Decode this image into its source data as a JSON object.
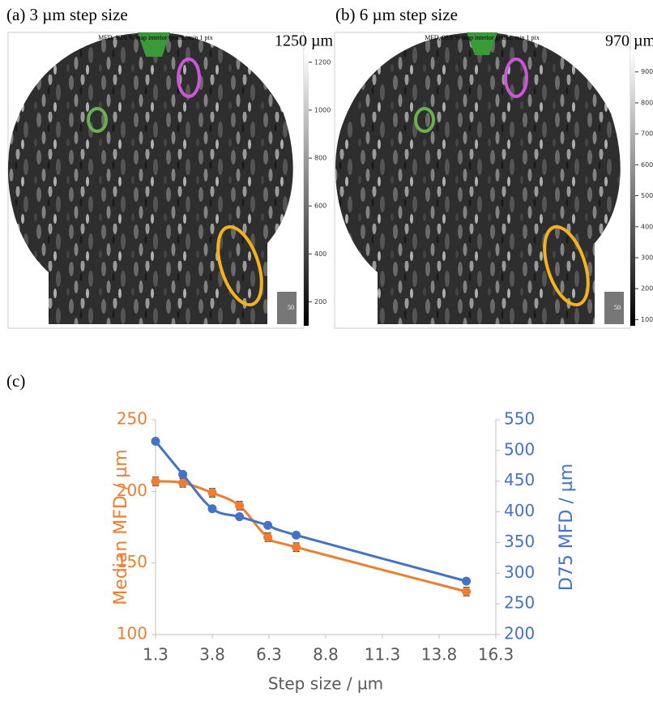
{
  "panels": [
    {
      "label": "(a) 3 µm step size",
      "map_title": "MFD, 99.6 % map interior grains, min 1 pix",
      "scale_max_label": "1250 µm",
      "colorbar_lim": [
        100,
        1250
      ],
      "colorbar_ticks": [
        200,
        400,
        600,
        800,
        1000,
        1200
      ],
      "scalebar": "50"
    },
    {
      "label": "(b) 6 µm step size",
      "map_title": "MFD, 99.6 % map interior grains, min 1 pix",
      "scale_max_label": "970 µm",
      "colorbar_lim": [
        80,
        970
      ],
      "colorbar_ticks": [
        100,
        200,
        300,
        400,
        500,
        600,
        700,
        800,
        900
      ],
      "scalebar": "50"
    }
  ],
  "chart_label": "(c)",
  "chart_data": {
    "type": "line",
    "x_label": "Step size / µm",
    "y_label": "Median MFD / µm",
    "y2_label": "D75 MFD / µm",
    "x": [
      1.3,
      2.5,
      3.8,
      5,
      6.25,
      7.5,
      15
    ],
    "series": [
      {
        "color": "#ed7d31",
        "values": [
          207,
          206,
          199,
          190,
          168,
          161,
          130
        ],
        "errors": [
          3,
          3,
          3,
          3,
          3,
          3,
          3
        ]
      },
      {
        "color": "#4472c4",
        "axis": "y2",
        "values": [
          515,
          461,
          405,
          392,
          378,
          362,
          287
        ]
      }
    ],
    "xlim": [
      1.3,
      16.3
    ],
    "xticks": [
      1.3,
      3.8,
      6.3,
      8.8,
      11.3,
      13.8,
      16.3
    ],
    "ylim": [
      100,
      250
    ],
    "yticks": [
      100,
      150,
      200,
      250
    ],
    "y2lim": [
      200,
      550
    ],
    "y2ticks": [
      200,
      250,
      300,
      350,
      400,
      450,
      500,
      550
    ],
    "grid": false
  }
}
